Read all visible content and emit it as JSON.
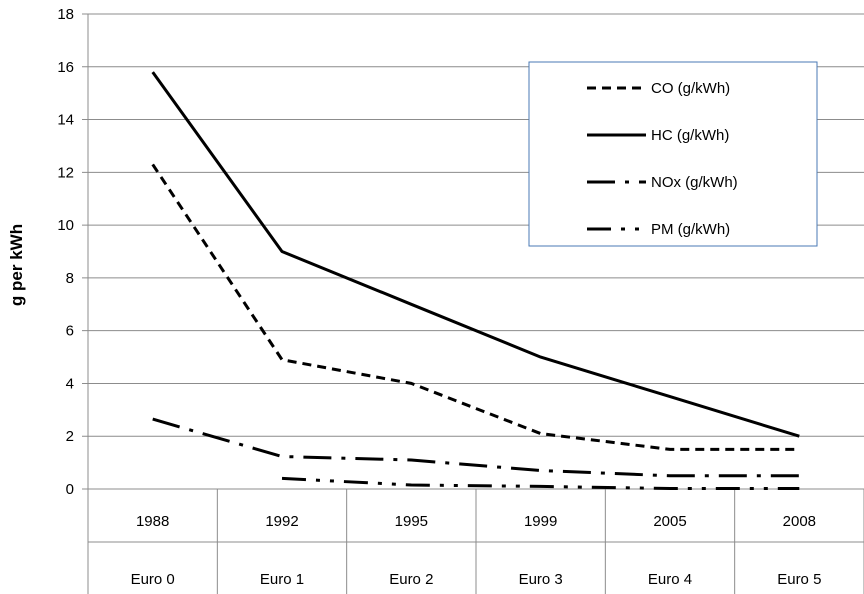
{
  "chart_data": {
    "type": "line",
    "categories": [
      "1988",
      "1992",
      "1995",
      "1999",
      "2005",
      "2008"
    ],
    "category_groups": [
      "Euro 0",
      "Euro 1",
      "Euro 2",
      "Euro 3",
      "Euro 4",
      "Euro 5"
    ],
    "title": "",
    "xlabel": "",
    "ylabel": "g per kWh",
    "ylim": [
      0,
      18
    ],
    "yticks": [
      0,
      2,
      4,
      6,
      8,
      10,
      12,
      14,
      16,
      18
    ],
    "grid": "horizontal",
    "legend_position": "top-right",
    "series": [
      {
        "name": "CO (g/kWh)",
        "dash": "dashed",
        "values": [
          12.3,
          4.9,
          4.0,
          2.1,
          1.5,
          1.5
        ]
      },
      {
        "name": "HC (g/kWh)",
        "dash": "solid",
        "values": [
          15.8,
          9.0,
          7.0,
          5.0,
          3.5,
          2.0
        ]
      },
      {
        "name": "NOx (g/kWh)",
        "dash": "long-dash-dot",
        "values": [
          2.65,
          1.23,
          1.1,
          0.7,
          0.5,
          0.5
        ]
      },
      {
        "name": "PM (g/kWh)",
        "dash": "dash-dot-dot",
        "values": [
          null,
          0.4,
          0.15,
          0.1,
          0.02,
          0.02
        ]
      }
    ]
  }
}
